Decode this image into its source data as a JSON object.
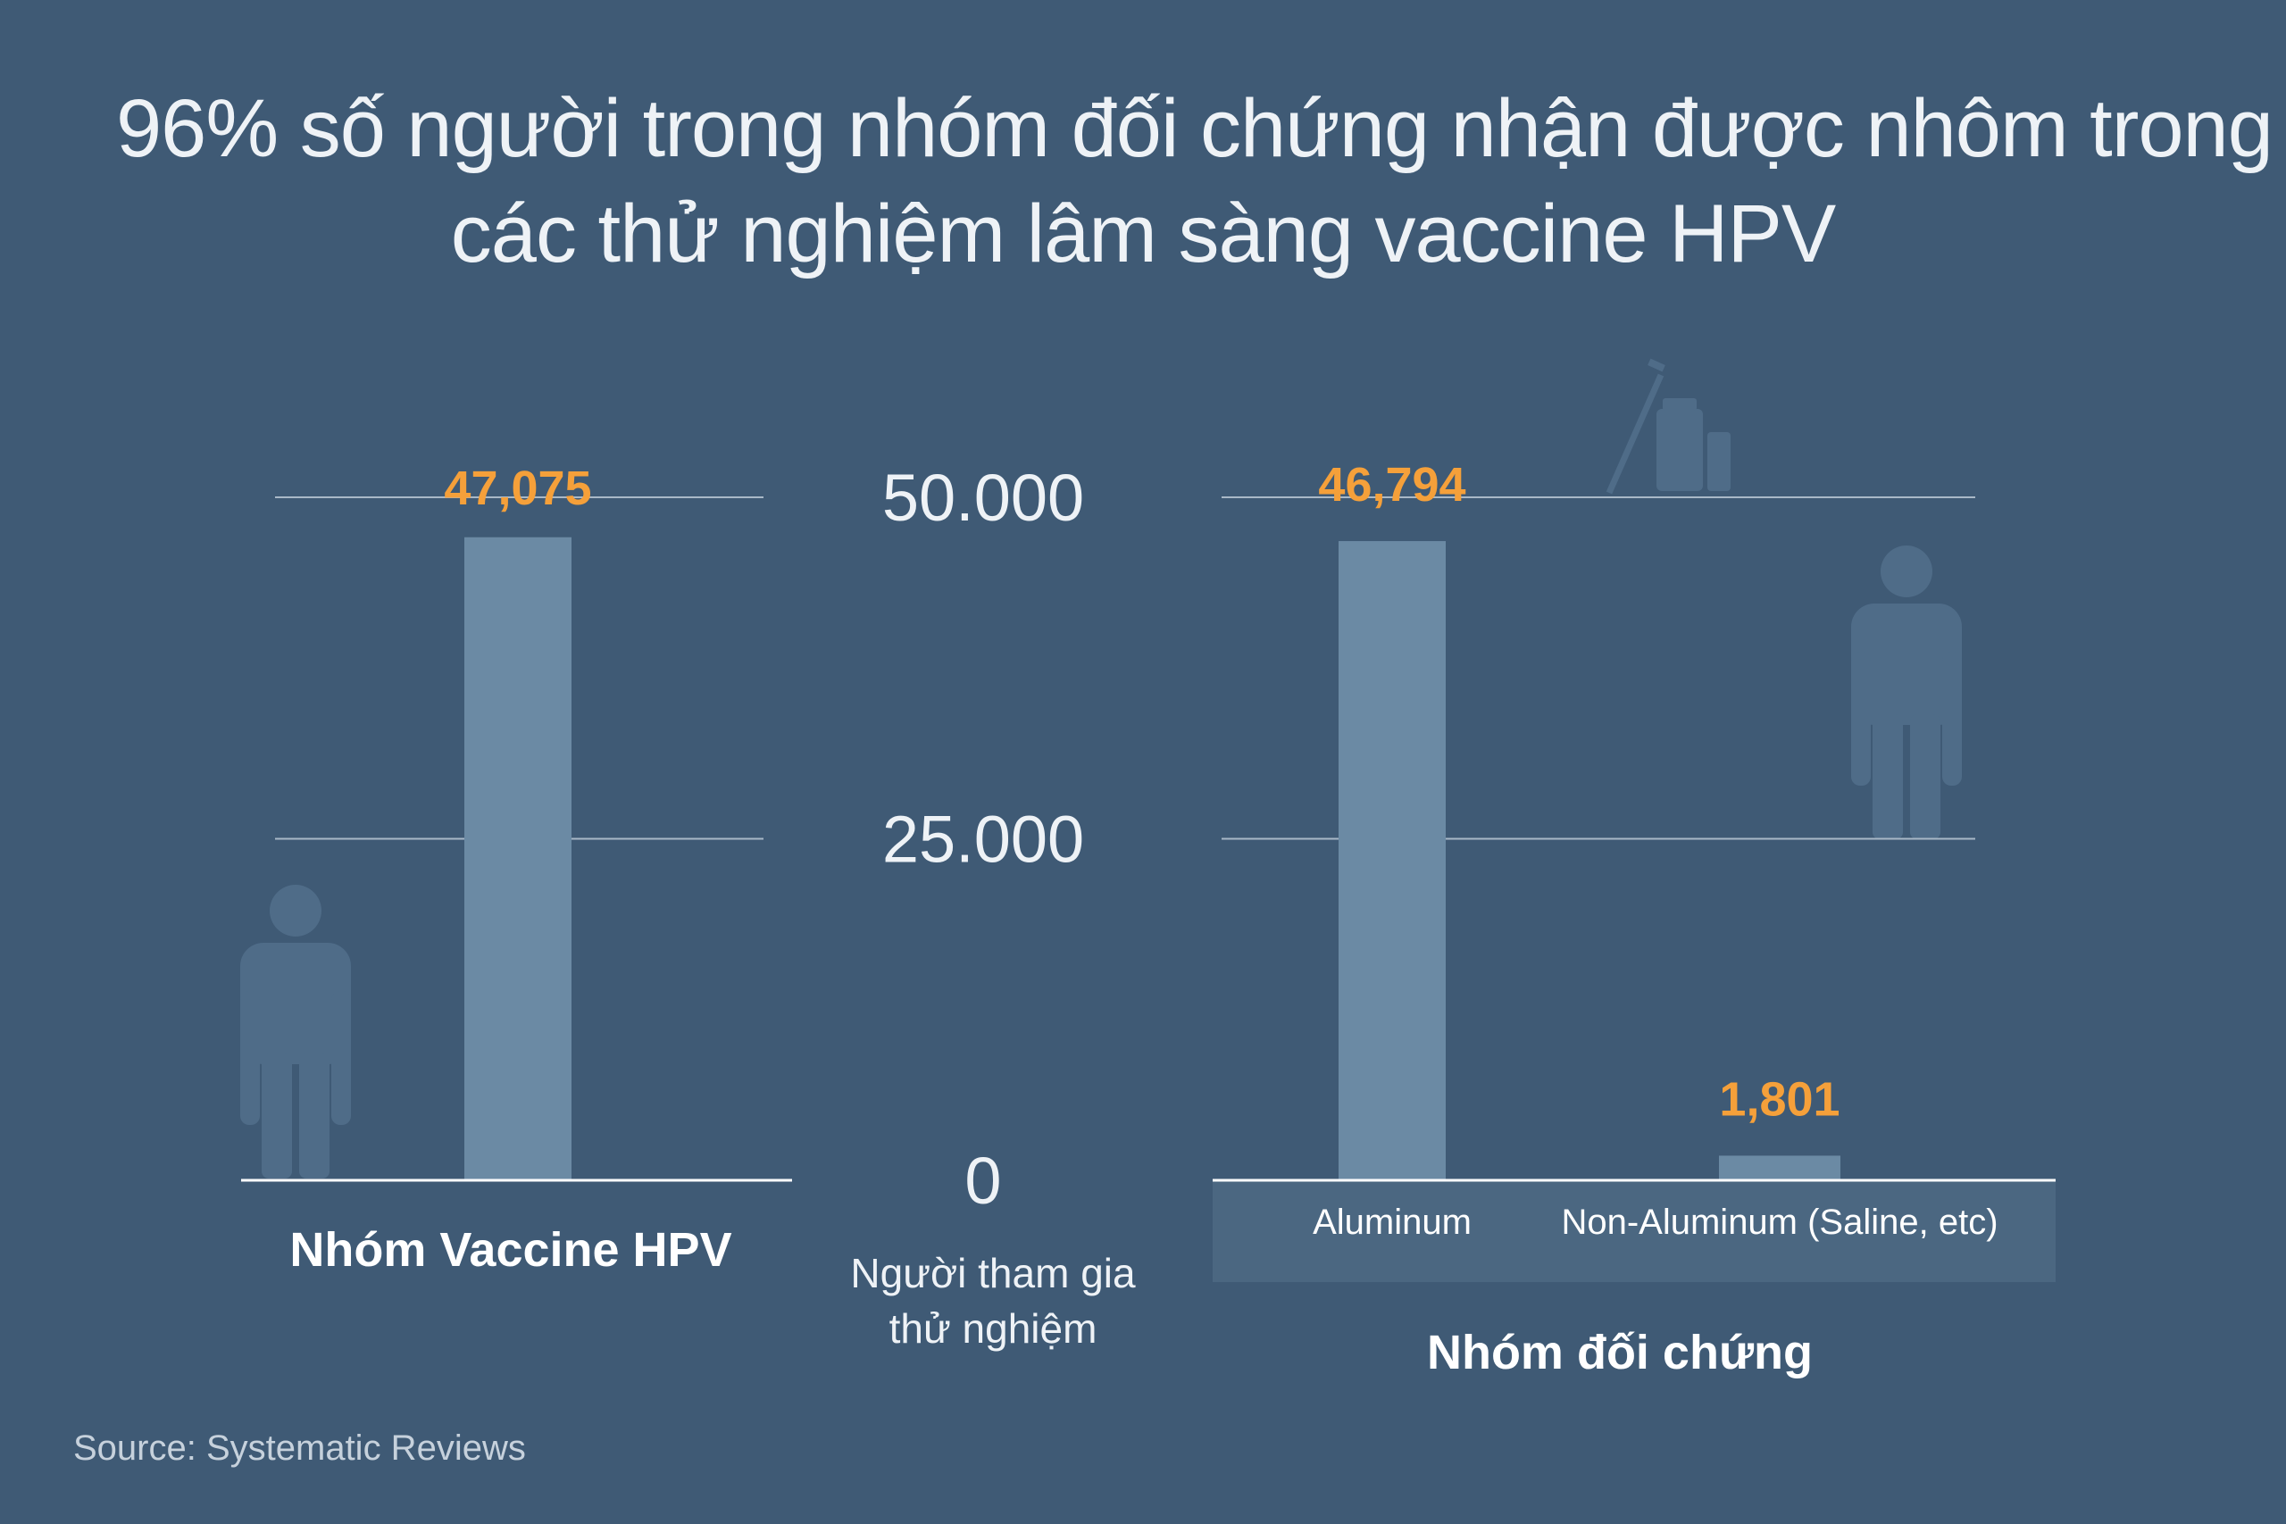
{
  "title_lines": [
    "96% số người trong nhóm đối chứng nhận được nhôm trong",
    "các thử nghiệm lâm sàng vaccine HPV"
  ],
  "source": "Source: Systematic Reviews",
  "colors": {
    "background": "#3f5a75",
    "bar": "#6b8aa4",
    "value_label": "#f5a03a",
    "gridline": "#a9b8c7",
    "axis": "#ffffff",
    "category_band": "#4b6781",
    "icon": "#4f6c88"
  },
  "icons": [
    "person-icon",
    "person-icon",
    "syringe-vial-icon"
  ],
  "chart_data": [
    {
      "type": "bar",
      "group_label": "Nhóm Vaccine HPV",
      "categories": [
        ""
      ],
      "values": [
        47075
      ],
      "value_labels": [
        "47,075"
      ],
      "ylim": [
        0,
        50000
      ]
    },
    {
      "type": "bar",
      "group_label": "Nhóm đối chứng",
      "categories": [
        "Aluminum",
        "Non-Aluminum (Saline, etc)"
      ],
      "values": [
        46794,
        1801
      ],
      "value_labels": [
        "46,794",
        "1,801"
      ],
      "ylim": [
        0,
        50000
      ]
    }
  ],
  "axis": {
    "ticks": [
      "50.000",
      "25.000",
      "0"
    ],
    "tick_values": [
      50000,
      25000,
      0
    ],
    "label_lines": [
      "Người tham gia",
      "thử nghiệm"
    ]
  }
}
